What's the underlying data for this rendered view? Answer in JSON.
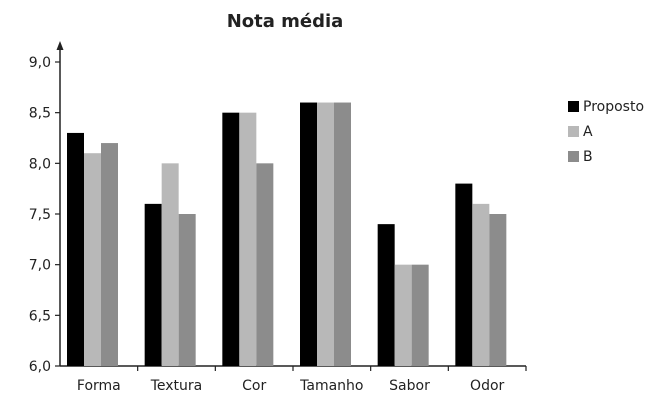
{
  "chart_data": {
    "type": "bar",
    "title": "Nota média",
    "xlabel": "",
    "ylabel": "",
    "ylim": [
      6.0,
      9.0
    ],
    "yticks": [
      "6,0",
      "6,5",
      "7,0",
      "7,5",
      "8,0",
      "8,5",
      "9,0"
    ],
    "ytick_values": [
      6.0,
      6.5,
      7.0,
      7.5,
      8.0,
      8.5,
      9.0
    ],
    "categories": [
      "Forma",
      "Textura",
      "Cor",
      "Tamanho",
      "Sabor",
      "Odor"
    ],
    "series": [
      {
        "name": "Proposto",
        "color": "#000000",
        "values": [
          8.3,
          7.6,
          8.5,
          8.6,
          7.4,
          7.8
        ]
      },
      {
        "name": "A",
        "color": "#b8b8b8",
        "values": [
          8.1,
          8.0,
          8.5,
          8.6,
          7.0,
          7.6
        ]
      },
      {
        "name": "B",
        "color": "#8c8c8c",
        "values": [
          8.2,
          7.5,
          8.0,
          8.6,
          7.0,
          7.5
        ]
      }
    ],
    "legend": "right",
    "grid": false
  }
}
